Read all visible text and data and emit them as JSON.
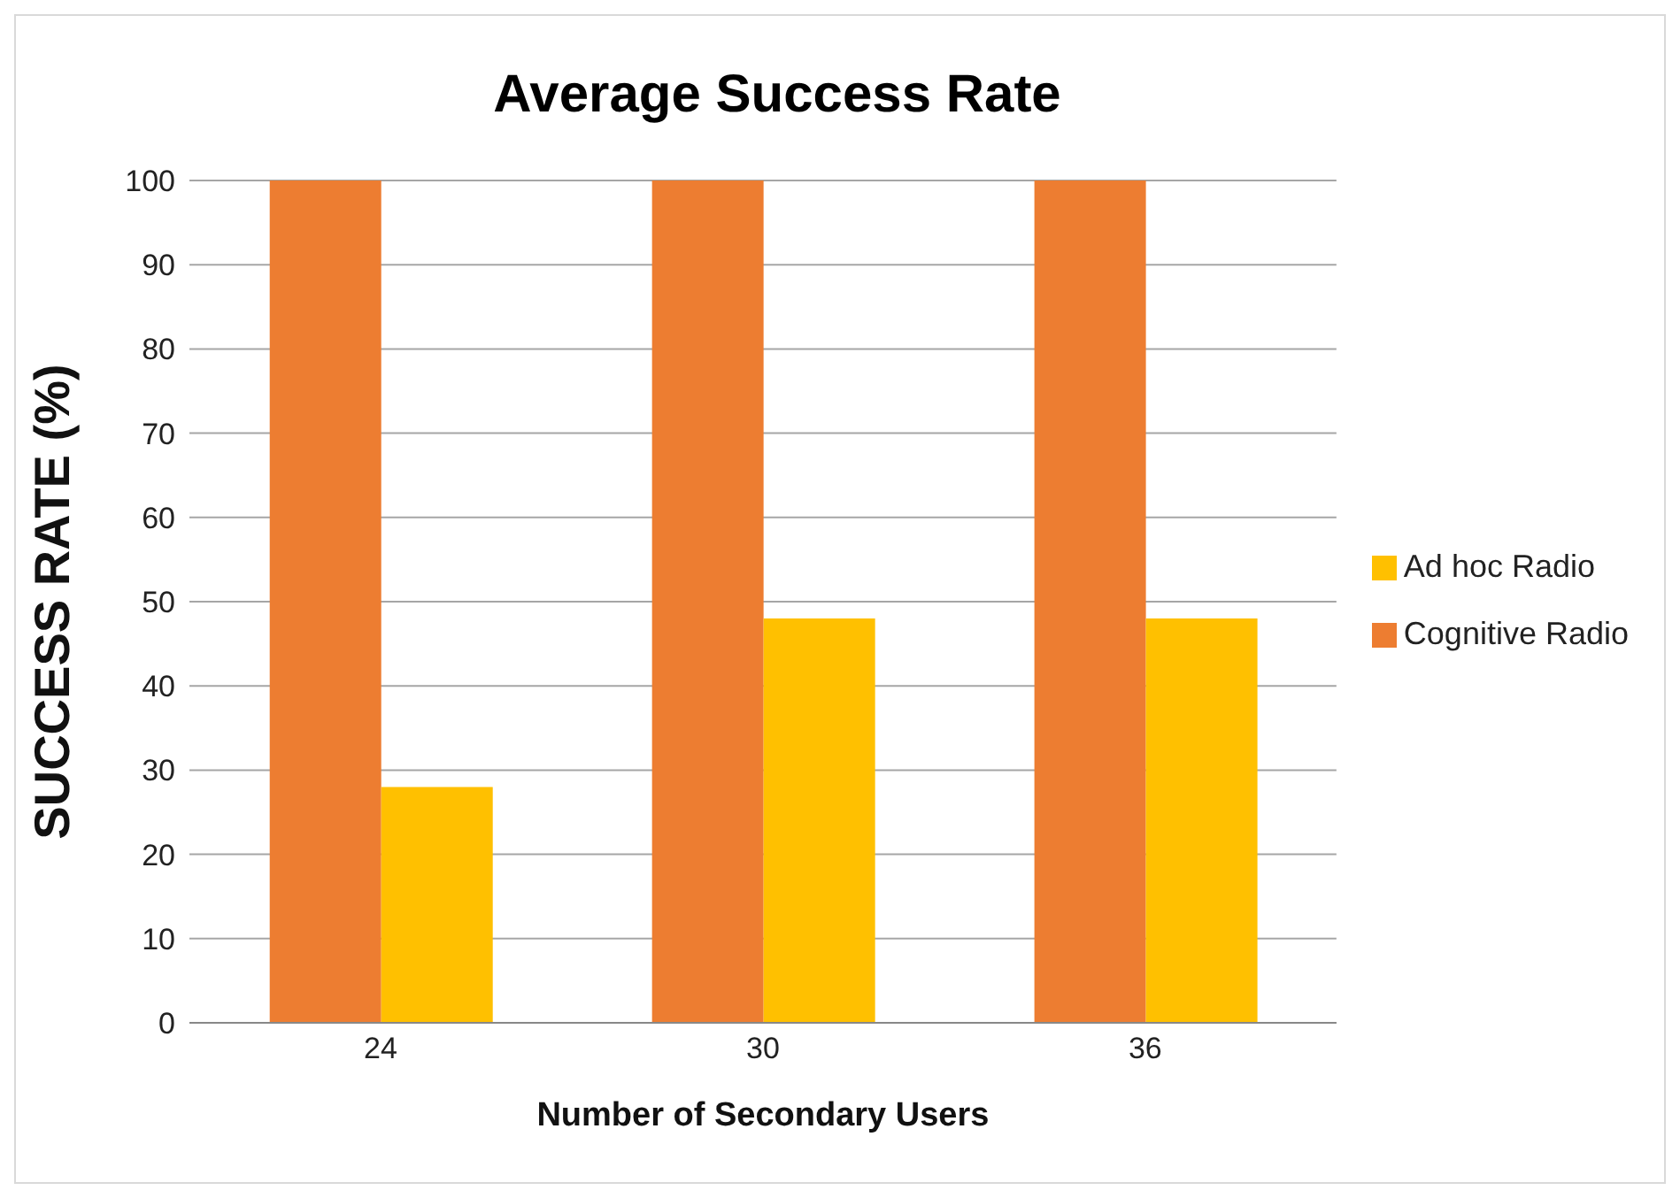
{
  "chart_data": {
    "type": "bar",
    "title": "Average Success Rate",
    "xlabel": "Number of Secondary Users",
    "ylabel": "SUCCESS RATE (%)",
    "categories": [
      "24",
      "30",
      "36"
    ],
    "series": [
      {
        "name": "Cognitive Radio",
        "color": "#ed7d31",
        "values": [
          100,
          100,
          100
        ]
      },
      {
        "name": "Ad hoc Radio",
        "color": "#ffc000",
        "values": [
          28,
          48,
          48
        ]
      }
    ],
    "ylim": [
      0,
      100
    ],
    "yticks": [
      0,
      10,
      20,
      30,
      40,
      50,
      60,
      70,
      80,
      90,
      100
    ],
    "grid": "y",
    "legend": "right"
  }
}
